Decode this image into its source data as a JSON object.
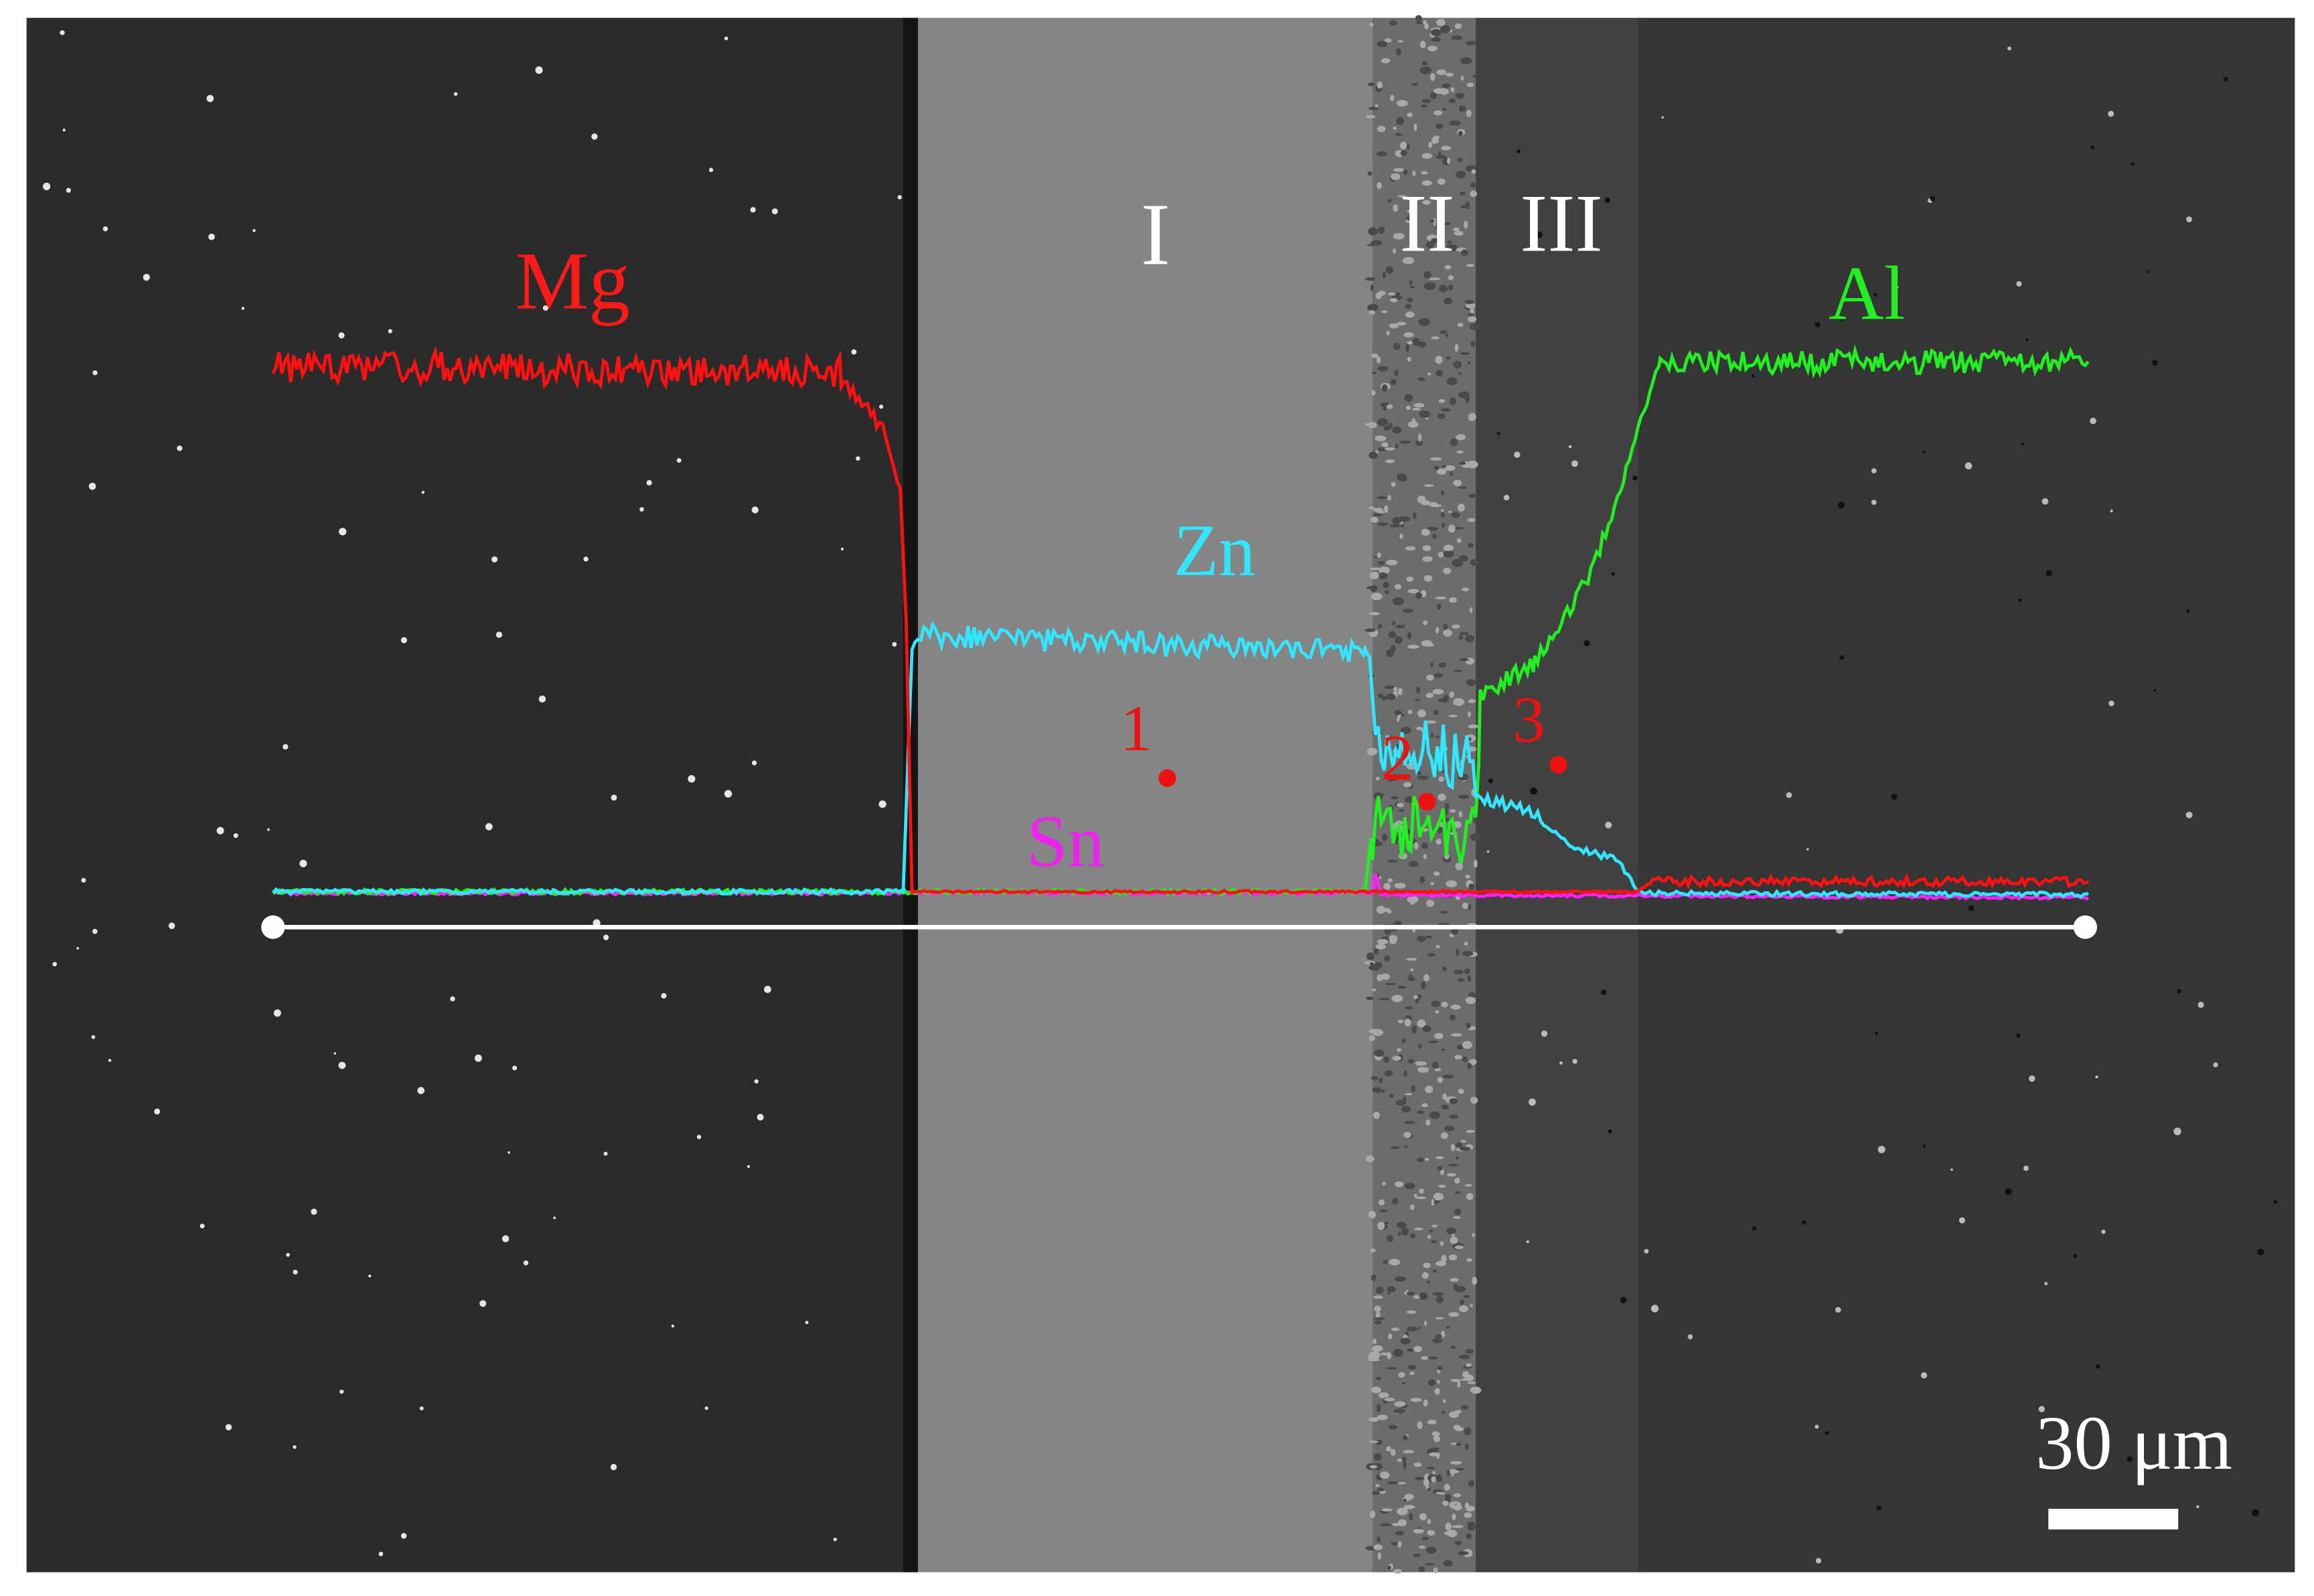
{
  "labels": {
    "elements": [
      "Mg",
      "Zn",
      "Al",
      "Sn"
    ],
    "regions": [
      "I",
      "II",
      "III"
    ],
    "points": [
      "1",
      "2",
      "3"
    ]
  },
  "scale_bar": "30 μm"
}
